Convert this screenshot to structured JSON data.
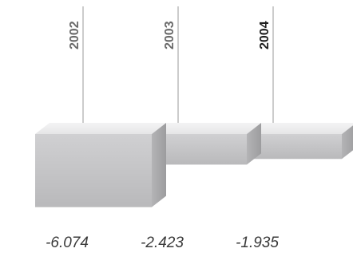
{
  "chart_data": {
    "type": "bar",
    "categories": [
      "2002",
      "2003",
      "2004"
    ],
    "values": [
      -6.074,
      -2.423,
      -1.935
    ],
    "value_labels": [
      "-6.074",
      "-2.423",
      "-1.935"
    ],
    "highlight_category": "2004",
    "title": "",
    "xlabel": "",
    "ylabel": "",
    "ylim": [
      -6.5,
      0
    ],
    "legend": "none",
    "grid": false,
    "style": "3d-boxes"
  },
  "colors": {
    "front_face": "#c6c6c8",
    "top_face": "#ededee",
    "side_face": "#a9a9ab",
    "notch": "#8a8a8c",
    "leader_line": "#9a9a9a",
    "year_label": "#6a6a6a",
    "year_label_emph": "#1e1e1e",
    "value_label": "#3a3a3a"
  }
}
